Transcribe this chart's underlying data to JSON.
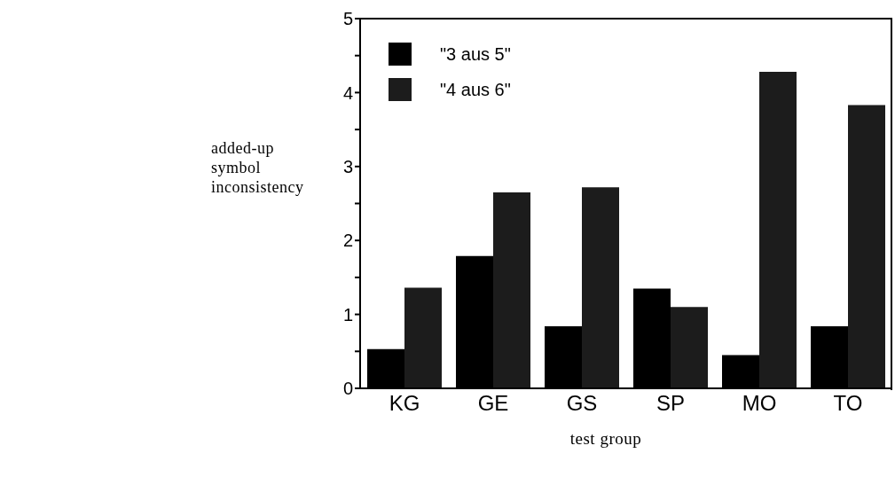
{
  "chart_data": {
    "type": "bar",
    "xlabel": "test group",
    "ylabel": "added-up symbol inconsistency",
    "categories": [
      "KG",
      "GE",
      "GS",
      "SP",
      "MO",
      "TO"
    ],
    "series": [
      {
        "name": "\"3 aus 5\"",
        "color": "#000000",
        "values": [
          0.53,
          1.79,
          0.84,
          1.35,
          0.45,
          0.84
        ]
      },
      {
        "name": "\"4 aus 6\"",
        "color": "#1c1c1c",
        "values": [
          1.36,
          2.65,
          2.72,
          1.1,
          4.28,
          3.83
        ]
      }
    ],
    "ylim": [
      0,
      5
    ],
    "yticks": [
      0,
      {
        "value": 0.5,
        "label": null
      },
      1,
      {
        "value": 1.5,
        "label": null
      },
      2,
      {
        "value": 2.5,
        "label": null
      },
      3,
      {
        "value": 3.5,
        "label": null
      },
      4,
      {
        "value": 4.5,
        "label": null
      },
      5
    ],
    "grid": false,
    "legend": "top left"
  }
}
